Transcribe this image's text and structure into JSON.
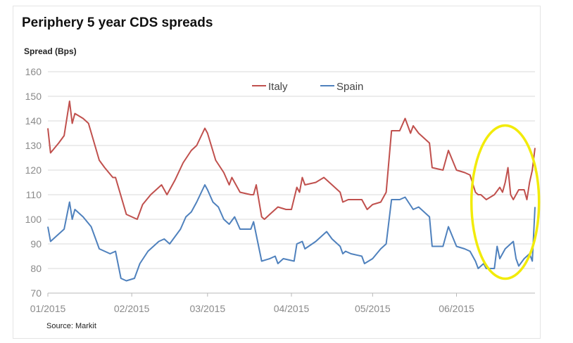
{
  "chart_data": {
    "type": "line",
    "title": "Periphery 5 year CDS spreads",
    "ylabel": "Spread (Bps)",
    "xlabel": "",
    "source": "Source: Markit",
    "ylim": [
      70,
      160
    ],
    "yticks": [
      70,
      80,
      90,
      100,
      110,
      120,
      130,
      140,
      150,
      160
    ],
    "x_range": [
      "2015-01-01",
      "2015-06-30"
    ],
    "xticks": [
      {
        "label": "01/2015",
        "date": "2015-01-01"
      },
      {
        "label": "02/2015",
        "date": "2015-02-01"
      },
      {
        "label": "03/2015",
        "date": "2015-03-01"
      },
      {
        "label": "04/2015",
        "date": "2015-04-01"
      },
      {
        "label": "05/2015",
        "date": "2015-05-01"
      },
      {
        "label": "06/2015",
        "date": "2015-06-01"
      }
    ],
    "grid": "horizontal",
    "legend_position": "top-center",
    "series": [
      {
        "name": "Italy",
        "color": "#c0504d",
        "points": [
          [
            "2015-01-01",
            137
          ],
          [
            "2015-01-02",
            127
          ],
          [
            "2015-01-05",
            131
          ],
          [
            "2015-01-07",
            134
          ],
          [
            "2015-01-09",
            148
          ],
          [
            "2015-01-10",
            139
          ],
          [
            "2015-01-11",
            143
          ],
          [
            "2015-01-14",
            141
          ],
          [
            "2015-01-16",
            139
          ],
          [
            "2015-01-20",
            124
          ],
          [
            "2015-01-22",
            121
          ],
          [
            "2015-01-25",
            117
          ],
          [
            "2015-01-26",
            117
          ],
          [
            "2015-01-30",
            102
          ],
          [
            "2015-02-03",
            100
          ],
          [
            "2015-02-05",
            106
          ],
          [
            "2015-02-08",
            110
          ],
          [
            "2015-02-12",
            114
          ],
          [
            "2015-02-14",
            110
          ],
          [
            "2015-02-17",
            116
          ],
          [
            "2015-02-20",
            123
          ],
          [
            "2015-02-23",
            128
          ],
          [
            "2015-02-25",
            130
          ],
          [
            "2015-02-28",
            137
          ],
          [
            "2015-03-01",
            135
          ],
          [
            "2015-03-04",
            124
          ],
          [
            "2015-03-07",
            119
          ],
          [
            "2015-03-09",
            114
          ],
          [
            "2015-03-10",
            117
          ],
          [
            "2015-03-13",
            111
          ],
          [
            "2015-03-17",
            110
          ],
          [
            "2015-03-18",
            110
          ],
          [
            "2015-03-19",
            114
          ],
          [
            "2015-03-21",
            101
          ],
          [
            "2015-03-22",
            100
          ],
          [
            "2015-03-24",
            102
          ],
          [
            "2015-03-27",
            105
          ],
          [
            "2015-03-30",
            104
          ],
          [
            "2015-04-01",
            104
          ],
          [
            "2015-04-03",
            113
          ],
          [
            "2015-04-04",
            111
          ],
          [
            "2015-04-05",
            117
          ],
          [
            "2015-04-06",
            114
          ],
          [
            "2015-04-10",
            115
          ],
          [
            "2015-04-13",
            117
          ],
          [
            "2015-04-16",
            114
          ],
          [
            "2015-04-19",
            111
          ],
          [
            "2015-04-20",
            107
          ],
          [
            "2015-04-22",
            108
          ],
          [
            "2015-04-27",
            108
          ],
          [
            "2015-04-29",
            104
          ],
          [
            "2015-05-01",
            106
          ],
          [
            "2015-05-04",
            107
          ],
          [
            "2015-05-06",
            111
          ],
          [
            "2015-05-08",
            136
          ],
          [
            "2015-05-11",
            136
          ],
          [
            "2015-05-13",
            141
          ],
          [
            "2015-05-15",
            135
          ],
          [
            "2015-05-16",
            138
          ],
          [
            "2015-05-18",
            135
          ],
          [
            "2015-05-22",
            131
          ],
          [
            "2015-05-23",
            121
          ],
          [
            "2015-05-27",
            120
          ],
          [
            "2015-05-29",
            128
          ],
          [
            "2015-06-01",
            120
          ],
          [
            "2015-06-04",
            119
          ],
          [
            "2015-06-06",
            118
          ],
          [
            "2015-06-08",
            111
          ],
          [
            "2015-06-09",
            110
          ],
          [
            "2015-06-10",
            110
          ],
          [
            "2015-06-12",
            108
          ],
          [
            "2015-06-15",
            110
          ],
          [
            "2015-06-17",
            113
          ],
          [
            "2015-06-18",
            111
          ],
          [
            "2015-06-19",
            115
          ],
          [
            "2015-06-20",
            121
          ],
          [
            "2015-06-21",
            110
          ],
          [
            "2015-06-22",
            108
          ],
          [
            "2015-06-24",
            112
          ],
          [
            "2015-06-26",
            112
          ],
          [
            "2015-06-27",
            108
          ],
          [
            "2015-06-28",
            115
          ],
          [
            "2015-06-29",
            120
          ],
          [
            "2015-06-30",
            129
          ]
        ]
      },
      {
        "name": "Spain",
        "color": "#4f81bd",
        "points": [
          [
            "2015-01-01",
            97
          ],
          [
            "2015-01-02",
            91
          ],
          [
            "2015-01-04",
            93
          ],
          [
            "2015-01-07",
            96
          ],
          [
            "2015-01-09",
            107
          ],
          [
            "2015-01-10",
            100
          ],
          [
            "2015-01-11",
            104
          ],
          [
            "2015-01-14",
            101
          ],
          [
            "2015-01-17",
            97
          ],
          [
            "2015-01-20",
            88
          ],
          [
            "2015-01-24",
            86
          ],
          [
            "2015-01-26",
            87
          ],
          [
            "2015-01-28",
            76
          ],
          [
            "2015-01-30",
            75
          ],
          [
            "2015-02-02",
            76
          ],
          [
            "2015-02-04",
            82
          ],
          [
            "2015-02-07",
            87
          ],
          [
            "2015-02-11",
            91
          ],
          [
            "2015-02-13",
            92
          ],
          [
            "2015-02-15",
            90
          ],
          [
            "2015-02-19",
            96
          ],
          [
            "2015-02-21",
            101
          ],
          [
            "2015-02-23",
            103
          ],
          [
            "2015-02-25",
            107
          ],
          [
            "2015-02-28",
            114
          ],
          [
            "2015-03-01",
            112
          ],
          [
            "2015-03-03",
            107
          ],
          [
            "2015-03-05",
            105
          ],
          [
            "2015-03-07",
            100
          ],
          [
            "2015-03-09",
            98
          ],
          [
            "2015-03-11",
            101
          ],
          [
            "2015-03-13",
            96
          ],
          [
            "2015-03-17",
            96
          ],
          [
            "2015-03-18",
            99
          ],
          [
            "2015-03-21",
            83
          ],
          [
            "2015-03-24",
            84
          ],
          [
            "2015-03-26",
            85
          ],
          [
            "2015-03-27",
            82
          ],
          [
            "2015-03-29",
            84
          ],
          [
            "2015-04-02",
            83
          ],
          [
            "2015-04-03",
            90
          ],
          [
            "2015-04-05",
            91
          ],
          [
            "2015-04-06",
            88
          ],
          [
            "2015-04-10",
            91
          ],
          [
            "2015-04-14",
            95
          ],
          [
            "2015-04-16",
            92
          ],
          [
            "2015-04-19",
            89
          ],
          [
            "2015-04-20",
            86
          ],
          [
            "2015-04-21",
            87
          ],
          [
            "2015-04-23",
            86
          ],
          [
            "2015-04-27",
            85
          ],
          [
            "2015-04-28",
            82
          ],
          [
            "2015-05-01",
            84
          ],
          [
            "2015-05-04",
            88
          ],
          [
            "2015-05-06",
            90
          ],
          [
            "2015-05-08",
            108
          ],
          [
            "2015-05-11",
            108
          ],
          [
            "2015-05-13",
            109
          ],
          [
            "2015-05-16",
            104
          ],
          [
            "2015-05-18",
            105
          ],
          [
            "2015-05-22",
            101
          ],
          [
            "2015-05-23",
            89
          ],
          [
            "2015-05-27",
            89
          ],
          [
            "2015-05-29",
            97
          ],
          [
            "2015-06-01",
            89
          ],
          [
            "2015-06-04",
            88
          ],
          [
            "2015-06-06",
            87
          ],
          [
            "2015-06-08",
            83
          ],
          [
            "2015-06-09",
            80
          ],
          [
            "2015-06-11",
            82
          ],
          [
            "2015-06-12",
            80
          ],
          [
            "2015-06-14",
            80
          ],
          [
            "2015-06-15",
            80
          ],
          [
            "2015-06-16",
            89
          ],
          [
            "2015-06-17",
            84
          ],
          [
            "2015-06-19",
            88
          ],
          [
            "2015-06-22",
            91
          ],
          [
            "2015-06-23",
            84
          ],
          [
            "2015-06-24",
            81
          ],
          [
            "2015-06-26",
            84
          ],
          [
            "2015-06-27",
            85
          ],
          [
            "2015-06-28",
            86
          ],
          [
            "2015-06-29",
            83
          ],
          [
            "2015-06-30",
            105
          ]
        ]
      }
    ],
    "annotations": [
      {
        "type": "ellipse",
        "color": "#f2eb0a",
        "x_center": "2015-06-19",
        "y_center": 107,
        "description": "highlight"
      }
    ]
  }
}
